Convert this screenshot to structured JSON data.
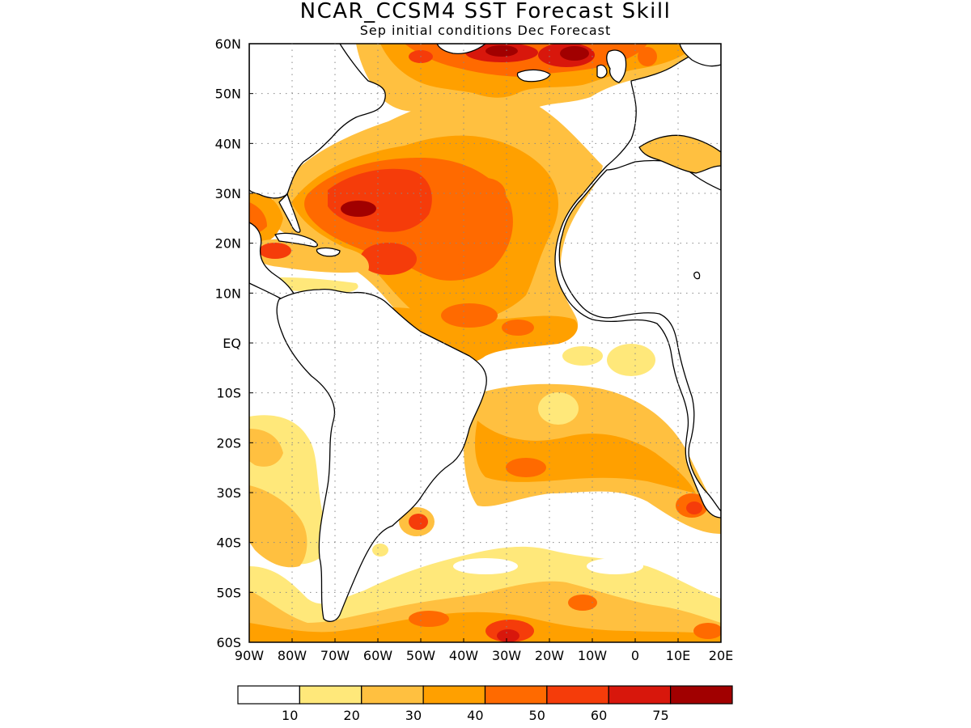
{
  "title": "NCAR_CCSM4 SST Forecast Skill",
  "subtitle": "Sep initial conditions  Dec Forecast",
  "map": {
    "lon_range": [
      -90,
      20
    ],
    "lat_range": [
      -60,
      60
    ],
    "lat_ticks": [
      "60N",
      "50N",
      "40N",
      "30N",
      "20N",
      "10N",
      "EQ",
      "10S",
      "20S",
      "30S",
      "40S",
      "50S",
      "60S"
    ],
    "lat_values": [
      60,
      50,
      40,
      30,
      20,
      10,
      0,
      -10,
      -20,
      -30,
      -40,
      -50,
      -60
    ],
    "lon_ticks": [
      "90W",
      "80W",
      "70W",
      "60W",
      "50W",
      "40W",
      "30W",
      "20W",
      "10W",
      "0",
      "10E",
      "20E"
    ],
    "lon_values": [
      -90,
      -80,
      -70,
      -60,
      -50,
      -40,
      -30,
      -20,
      -10,
      0,
      10,
      20
    ],
    "grid": "dotted"
  },
  "legend": {
    "labels": [
      "10",
      "20",
      "30",
      "40",
      "50",
      "60",
      "75"
    ],
    "colors": [
      "#ffffff",
      "#ffe87a",
      "#ffc040",
      "#ffa000",
      "#ff6a00",
      "#f53c0a",
      "#d8170c",
      "#a10000"
    ]
  },
  "regions": [
    {
      "name": "gulf-stream-core",
      "lon": -59,
      "lat": 27,
      "level": 7
    },
    {
      "name": "northwest-atlantic-high",
      "lon": -55,
      "lat": 30,
      "level": 6
    },
    {
      "name": "subpolar-north-high",
      "lon": -15,
      "lat": 58,
      "level": 7
    },
    {
      "name": "north-atlantic-high",
      "lon": -30,
      "lat": 58,
      "level": 7
    },
    {
      "name": "caribbean-high",
      "lon": -85,
      "lat": 19,
      "level": 5
    },
    {
      "name": "tropical-north-atlantic",
      "lon": -45,
      "lat": 16,
      "level": 5
    },
    {
      "name": "equatorial-atlantic",
      "lon": -35,
      "lat": 4,
      "level": 4
    },
    {
      "name": "south-atlantic-central",
      "lon": -20,
      "lat": -26,
      "level": 4
    },
    {
      "name": "benguela",
      "lon": 14,
      "lat": -34,
      "level": 5
    },
    {
      "name": "brazil-malvinas",
      "lon": -51,
      "lat": -36,
      "level": 5
    },
    {
      "name": "southern-ocean-high",
      "lon": -30,
      "lat": -58,
      "level": 6
    }
  ]
}
